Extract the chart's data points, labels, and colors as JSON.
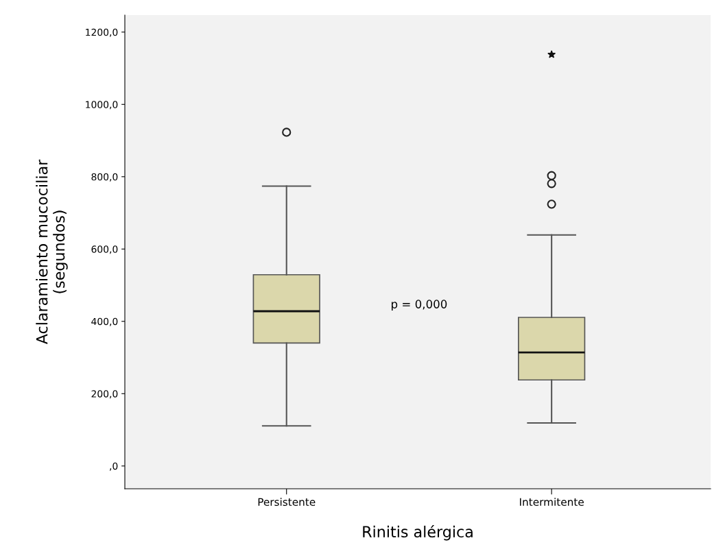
{
  "chart_data": {
    "type": "box",
    "xlabel": "Rinitis alérgica",
    "ylabel": "Aclaramiento mucociliar\n(segundos)",
    "categories": [
      "Persistente",
      "Intermitente"
    ],
    "series": [
      {
        "color": "#dbd7ab",
        "boxes": [
          {
            "low": 111,
            "q1": 340,
            "median": 428,
            "q3": 529,
            "high": 774,
            "outliers": [
              923
            ]
          },
          {
            "low": 119,
            "q1": 238,
            "median": 314,
            "q3": 411,
            "high": 639,
            "outliers": [
              724,
              781,
              803,
              1138
            ]
          }
        ]
      }
    ],
    "ylim": [
      -63,
      1247
    ],
    "yticks": [
      {
        "value": 0,
        "label": ",0"
      },
      {
        "value": 200,
        "label": "200,0"
      },
      {
        "value": 400,
        "label": "400,0"
      },
      {
        "value": 600,
        "label": "600,0"
      },
      {
        "value": 800,
        "label": "800,0"
      },
      {
        "value": 1000,
        "label": "1000,0"
      },
      {
        "value": 1200,
        "label": "1200,0"
      }
    ],
    "annotations": [
      "p = 0,000"
    ],
    "grid": false
  }
}
